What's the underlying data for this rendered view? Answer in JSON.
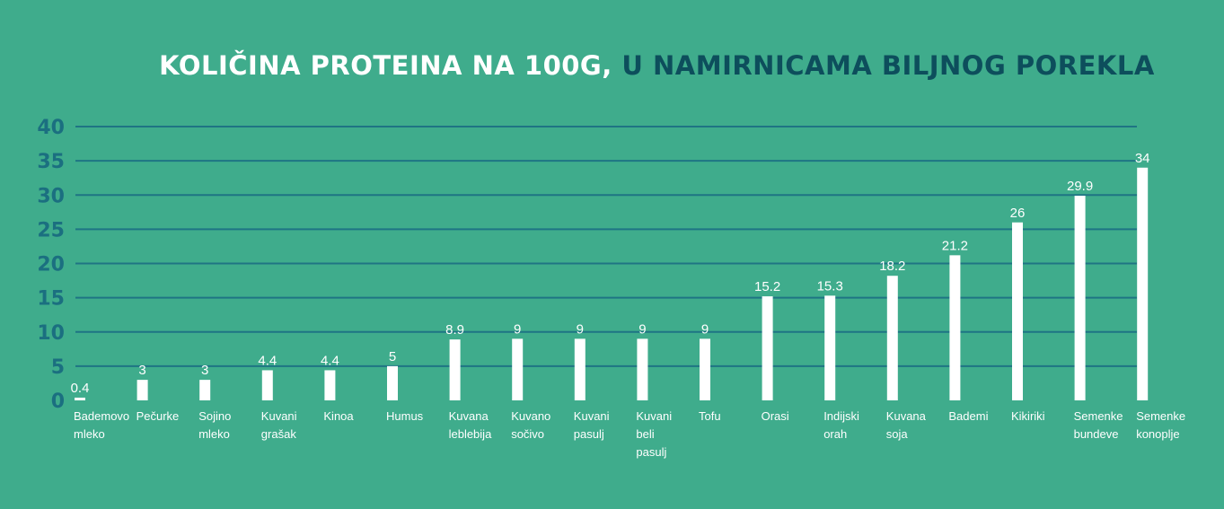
{
  "title": {
    "part1": "KOLIČINA PROTEINA NA 100G,",
    "part2": " U NAMIRNICAMA BILJNOG POREKLA"
  },
  "colors": {
    "background": "#3fac8c",
    "bars": "#ffffff",
    "axis_text": "#1b6f80",
    "grid": "#1f7484",
    "title_highlight": "#0d4e5c"
  },
  "chart_data": {
    "type": "bar",
    "title": "KOLIČINA PROTEINA NA 100G, U NAMIRNICAMA BILJNOG POREKLA",
    "categories": [
      [
        "Bademovo",
        "mleko"
      ],
      [
        "Pečurke"
      ],
      [
        "Sojino",
        "mleko"
      ],
      [
        "Kuvani",
        "grašak"
      ],
      [
        "Kinoa"
      ],
      [
        "Humus"
      ],
      [
        "Kuvana",
        "leblebija"
      ],
      [
        "Kuvano",
        "sočivo"
      ],
      [
        "Kuvani",
        "pasulj"
      ],
      [
        "Kuvani",
        "beli",
        "pasulj"
      ],
      [
        "Tofu"
      ],
      [
        "Orasi"
      ],
      [
        "Indijski",
        "orah"
      ],
      [
        "Kuvana",
        "soja"
      ],
      [
        "Bademi"
      ],
      [
        "Kikiriki"
      ],
      [
        "Semenke",
        "bundeve"
      ],
      [
        "Semenke",
        "konoplje"
      ]
    ],
    "values": [
      0.4,
      3,
      3,
      4.4,
      4.4,
      5,
      8.9,
      9,
      9,
      9,
      9,
      15.2,
      15.3,
      18.2,
      21.2,
      26,
      29.9,
      34
    ],
    "value_labels": [
      "0.4",
      "3",
      "3",
      "4.4",
      "4.4",
      "5",
      "8.9",
      "9",
      "9",
      "9",
      "9",
      "15.2",
      "15.3",
      "18.2",
      "21.2",
      "26",
      "29.9",
      "34"
    ],
    "yticks": [
      0,
      5,
      10,
      15,
      20,
      25,
      30,
      35,
      40
    ],
    "ylim": [
      0,
      40
    ],
    "grid": true
  }
}
